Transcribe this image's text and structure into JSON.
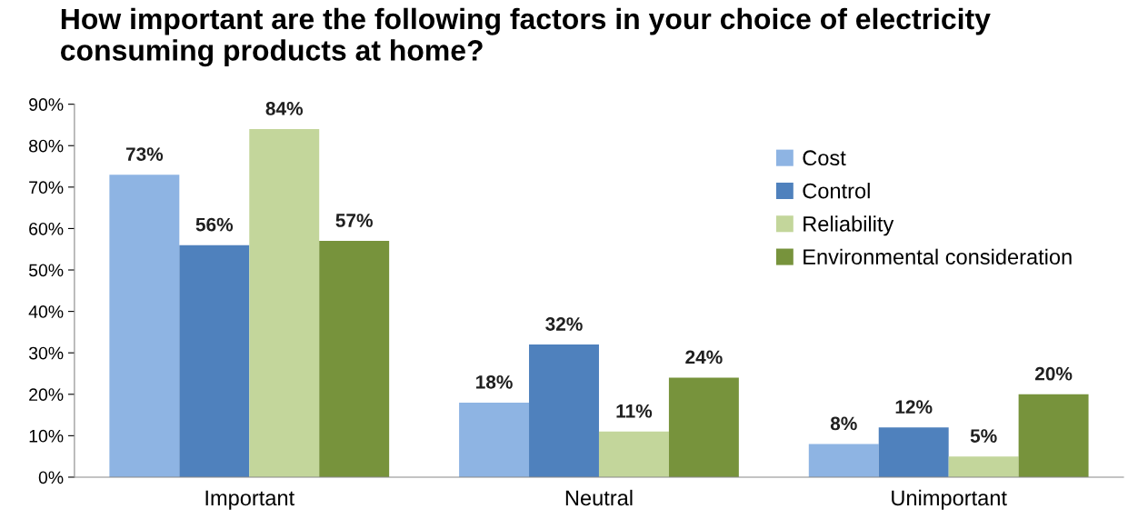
{
  "chart_data": {
    "type": "bar",
    "title": "How important are the following factors in your choice of electricity consuming products at home?",
    "categories": [
      "Important",
      "Neutral",
      "Unimportant"
    ],
    "series": [
      {
        "name": "Cost",
        "color": "#8eb4e3",
        "values": [
          73,
          18,
          8
        ],
        "value_labels": [
          "73%",
          "18%",
          "8%"
        ]
      },
      {
        "name": "Control",
        "color": "#4f81bd",
        "values": [
          56,
          32,
          12
        ],
        "value_labels": [
          "56%",
          "32%",
          "12%"
        ]
      },
      {
        "name": "Reliability",
        "color": "#c3d69b",
        "values": [
          84,
          11,
          5
        ],
        "value_labels": [
          "84%",
          "11%",
          "5%"
        ]
      },
      {
        "name": "Environmental consideration",
        "color": "#77933c",
        "values": [
          57,
          24,
          20
        ],
        "value_labels": [
          "57%",
          "24%",
          "20%"
        ]
      }
    ],
    "ylim": [
      0,
      90
    ],
    "yticks": [
      {
        "value": 0,
        "label": "0%"
      },
      {
        "value": 10,
        "label": "10%"
      },
      {
        "value": 20,
        "label": "20%"
      },
      {
        "value": 30,
        "label": "30%"
      },
      {
        "value": 40,
        "label": "40%"
      },
      {
        "value": 50,
        "label": "50%"
      },
      {
        "value": 60,
        "label": "60%"
      },
      {
        "value": 70,
        "label": "70%"
      },
      {
        "value": 80,
        "label": "80%"
      },
      {
        "value": 90,
        "label": "90%"
      }
    ],
    "grid": false,
    "legend": "top right"
  }
}
